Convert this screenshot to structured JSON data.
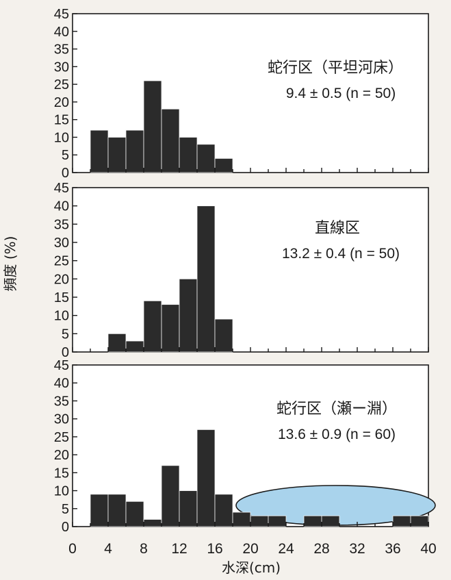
{
  "chart_data": [
    {
      "type": "bar",
      "title": "蛇行区（平坦河床）",
      "stat": "9.4 ± 0.5 (n = 50)",
      "bin_edges": [
        2,
        4,
        6,
        8,
        10,
        12,
        14,
        16,
        18
      ],
      "values": [
        12,
        10,
        12,
        26,
        18,
        10,
        8,
        4
      ],
      "ylim": [
        0,
        45
      ]
    },
    {
      "type": "bar",
      "title": "直線区",
      "stat": "13.2 ± 0.4 (n = 50)",
      "bin_edges": [
        4,
        6,
        8,
        10,
        12,
        14,
        16,
        18
      ],
      "values": [
        5,
        3,
        14,
        13,
        20,
        40,
        9
      ],
      "ylim": [
        0,
        45
      ]
    },
    {
      "type": "bar",
      "title": "蛇行区（瀬ー淵）",
      "stat": "13.6 ± 0.9 (n = 60)",
      "bin_edges": [
        2,
        4,
        6,
        8,
        10,
        12,
        14,
        16,
        18,
        20,
        22,
        24,
        26,
        28,
        30,
        32,
        34,
        36,
        38,
        40
      ],
      "values": [
        9,
        9,
        7,
        2,
        17,
        10,
        27,
        9,
        4,
        3,
        3,
        0,
        3,
        3,
        0,
        0,
        0,
        3,
        3
      ],
      "ylim": [
        0,
        45
      ],
      "highlight_range": [
        19,
        40
      ],
      "highlight_color": "#a9d3ec"
    }
  ],
  "ylabel": "頻度 (%)",
  "xlabel": "水深(cm)",
  "x_ticks": [
    "0",
    "4",
    "8",
    "12",
    "16",
    "20",
    "24",
    "28",
    "32",
    "36",
    "40"
  ],
  "y_ticks": [
    "0",
    "5",
    "10",
    "15",
    "20",
    "25",
    "30",
    "35",
    "40",
    "45"
  ],
  "bar_color": "#2b2b2b"
}
